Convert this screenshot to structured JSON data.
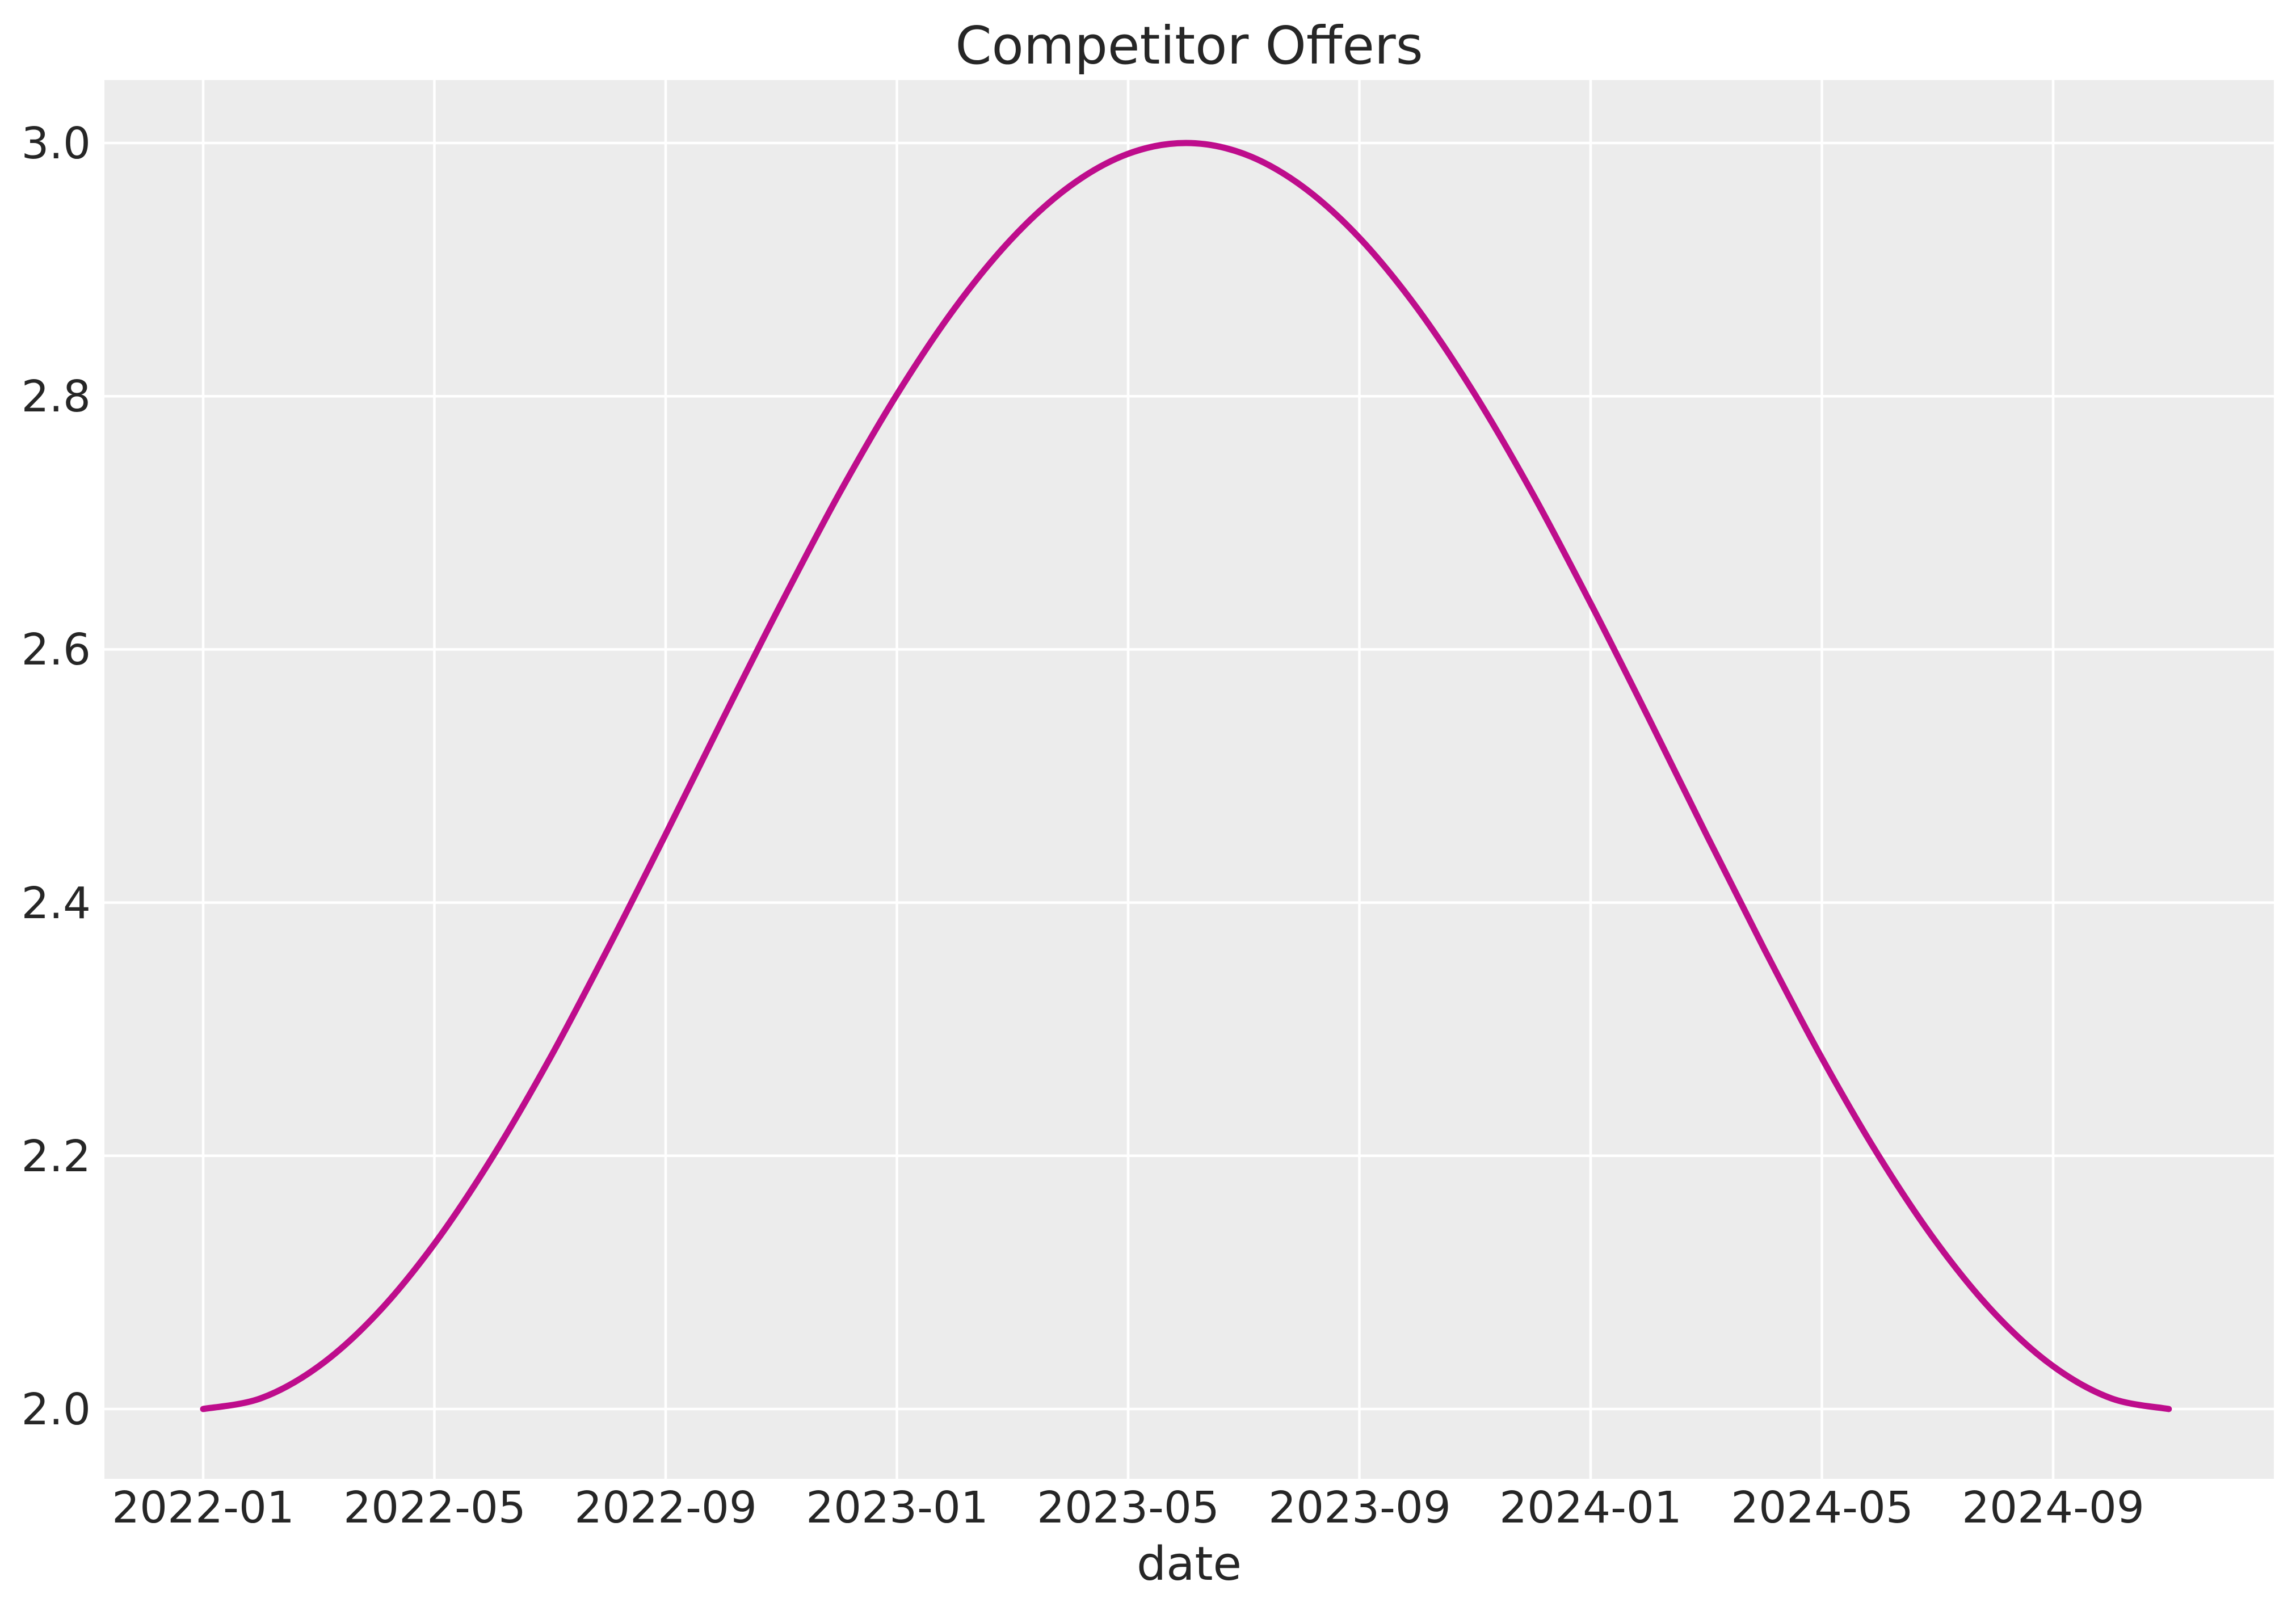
{
  "chart": {
    "title": "Competitor Offers",
    "x_axis_label": "date",
    "colors": {
      "line": "#be0d8c",
      "plot_background": "#ececec",
      "grid": "#ffffff",
      "text": "#262626",
      "figure_background": "#ffffff"
    }
  },
  "chart_data": {
    "type": "line",
    "title": "Competitor Offers",
    "xlabel": "date",
    "ylabel": "",
    "grid": true,
    "legend": false,
    "ylim": [
      1.95,
      3.05
    ],
    "x_tick_labels": [
      "2022-01",
      "2022-05",
      "2022-09",
      "2023-01",
      "2023-05",
      "2023-09",
      "2024-01",
      "2024-05",
      "2024-09"
    ],
    "y_tick_labels": [
      "2.0",
      "2.2",
      "2.4",
      "2.6",
      "2.8",
      "3.0"
    ],
    "series": [
      {
        "name": "Competitor Offers",
        "color": "#be0d8c",
        "x": [
          "2022-01",
          "2022-02",
          "2022-03",
          "2022-04",
          "2022-05",
          "2022-06",
          "2022-07",
          "2022-08",
          "2022-09",
          "2022-10",
          "2022-11",
          "2022-12",
          "2023-01",
          "2023-02",
          "2023-03",
          "2023-04",
          "2023-05",
          "2023-06",
          "2023-07",
          "2023-08",
          "2023-09",
          "2023-10",
          "2023-11",
          "2023-12",
          "2024-01",
          "2024-02",
          "2024-03",
          "2024-04",
          "2024-05",
          "2024-06",
          "2024-07",
          "2024-08",
          "2024-09",
          "2024-10",
          "2024-11"
        ],
        "values": [
          2.0,
          2.0085,
          2.0338,
          2.0749,
          2.1305,
          2.1987,
          2.2772,
          2.3636,
          2.4539,
          2.5461,
          2.6364,
          2.7228,
          2.8013,
          2.8695,
          2.9251,
          2.9662,
          2.9915,
          3.0,
          2.9915,
          2.9662,
          2.9251,
          2.8695,
          2.8013,
          2.7228,
          2.6364,
          2.5461,
          2.4539,
          2.3636,
          2.2772,
          2.1987,
          2.1305,
          2.0749,
          2.0338,
          2.0085,
          2.0
        ]
      }
    ]
  }
}
